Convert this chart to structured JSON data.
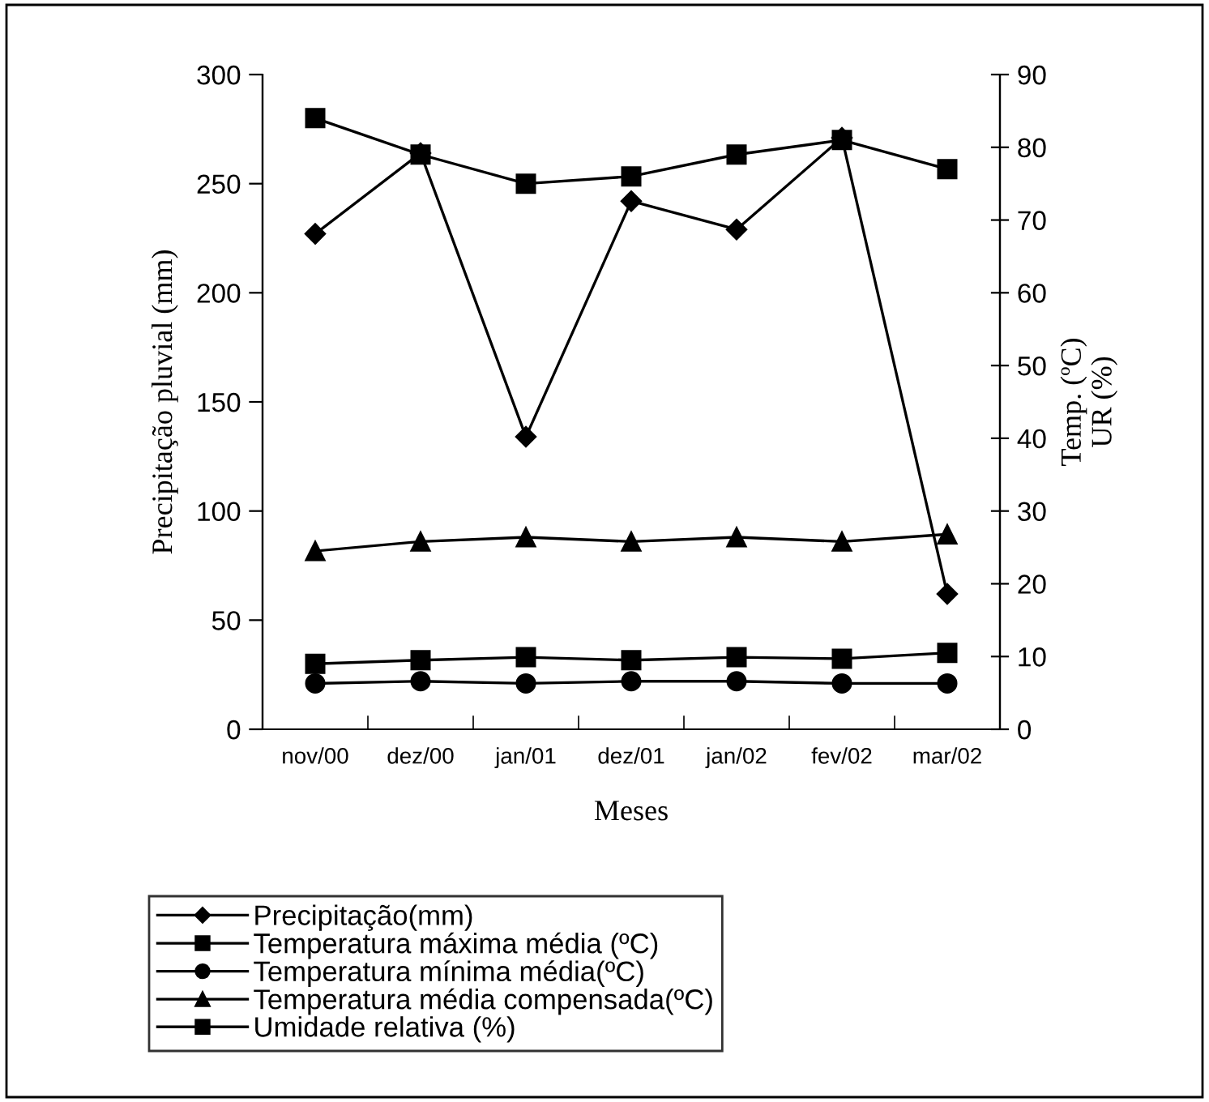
{
  "chart_data": {
    "type": "line",
    "xlabel": "Meses",
    "ylabel": "Precipitação pluvial (mm)",
    "y2label": "Temp. (ºC)\nUR (%)",
    "categories": [
      "nov/00",
      "dez/00",
      "jan/01",
      "dez/01",
      "jan/02",
      "fev/02",
      "mar/02"
    ],
    "series": [
      {
        "name": "Precipitação(mm)",
        "color": "#000000",
        "marker": "diamond",
        "values": [
          227,
          264,
          134,
          242,
          229,
          271,
          62
        ]
      },
      {
        "name": "Temperatura máxima média (ºC)",
        "color": "#000000",
        "marker": "square",
        "axis": "y2",
        "values": [
          9,
          9.5,
          9.9,
          9.5,
          9.9,
          9.7,
          10.5
        ]
      },
      {
        "name": "Temperatura mínima média(ºC)",
        "color": "#000000",
        "marker": "circle",
        "axis": "y2",
        "values": [
          6.3,
          6.6,
          6.3,
          6.6,
          6.6,
          6.3,
          6.3
        ]
      },
      {
        "name": "Temperatura média compensada(ºC)",
        "color": "#000000",
        "marker": "triangle",
        "axis": "y2",
        "values": [
          24.5,
          25.8,
          26.4,
          25.8,
          26.4,
          25.8,
          26.8
        ]
      },
      {
        "name": "Umidade relativa (%)",
        "color": "#000000",
        "marker": "square",
        "axis": "y2",
        "values": [
          84,
          79,
          75,
          76,
          79,
          81,
          77
        ]
      }
    ],
    "ylim": [
      0,
      300
    ],
    "yticks": [
      0,
      50,
      100,
      150,
      200,
      250,
      300
    ],
    "y2lim": [
      0,
      90
    ],
    "y2ticks": [
      0,
      10,
      20,
      30,
      40,
      50,
      60,
      70,
      80,
      90
    ],
    "legend": "bottom",
    "grid": false,
    "line_style": "solid"
  }
}
